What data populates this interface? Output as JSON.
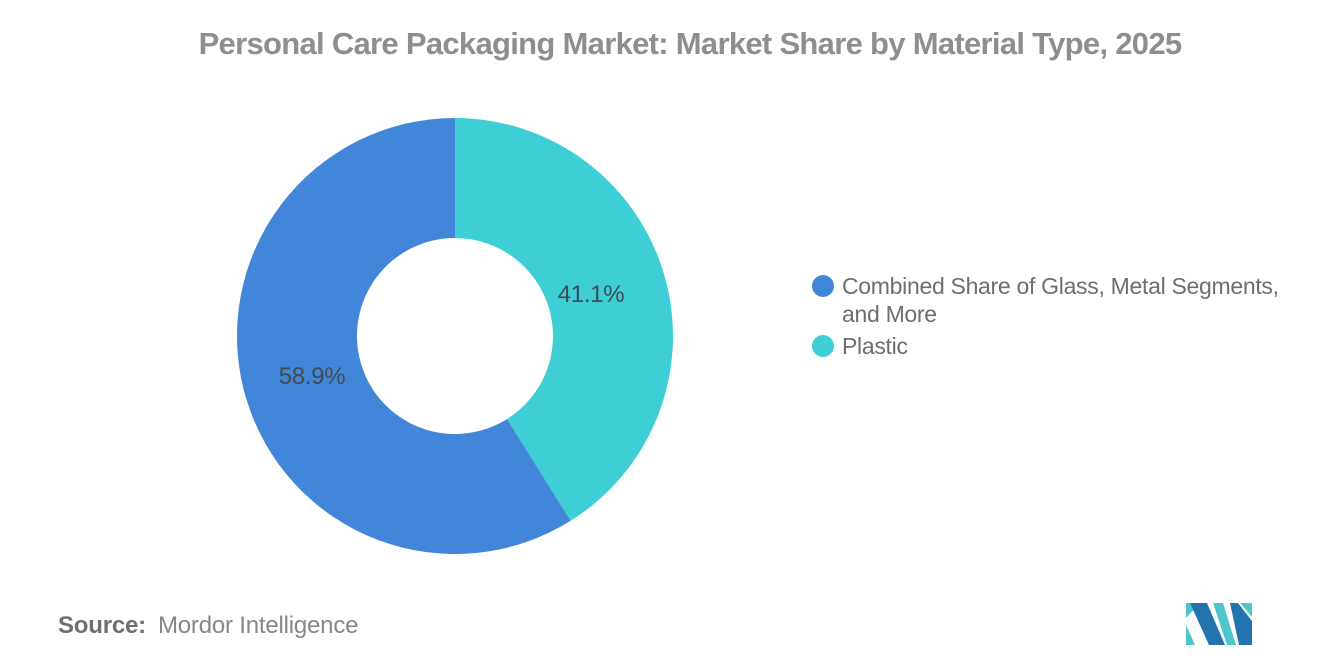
{
  "title": "Personal Care Packaging Market: Market Share by Material Type, 2025",
  "chart_data": {
    "type": "pie",
    "donut": true,
    "start_angle_deg": 0,
    "direction": "counterclockwise",
    "legend_position": "right",
    "values_unit": "%",
    "series": [
      {
        "name": "Combined Share of Glass, Metal Segments, and More",
        "value": 58.9,
        "label": "58.9%",
        "color": "#4286D9"
      },
      {
        "name": "Plastic",
        "value": 41.1,
        "label": "41.1%",
        "color": "#3ECED5"
      }
    ]
  },
  "legend": {
    "items": [
      {
        "lines": [
          "Combined Share of Glass, Metal Segments,",
          "and More"
        ]
      },
      {
        "lines": [
          "Plastic"
        ]
      }
    ]
  },
  "source": {
    "label": "Source:",
    "value": "Mordor Intelligence"
  },
  "logo": {
    "name": "mordor-intelligence-logo",
    "colors": {
      "blue": "#2273AE",
      "teal": "#4EC6CB"
    }
  },
  "colors": {
    "title": "#8E8E8E",
    "legend_text": "#6E6E70",
    "segment_label": "#3F4A54",
    "source_label": "#6F6F6F",
    "source_value": "#878787",
    "background": "#FFFFFF"
  }
}
